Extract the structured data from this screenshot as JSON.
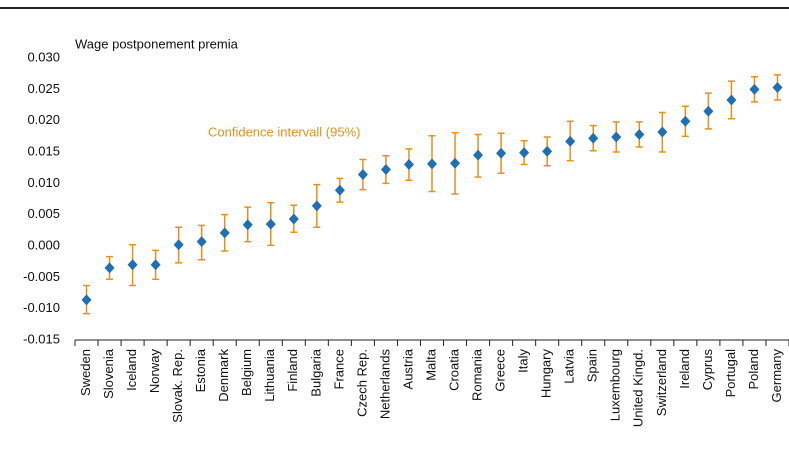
{
  "chart_data": {
    "type": "errorbar",
    "title": "Wage postponement premia",
    "annotation": "Confidence intervall (95%)",
    "categories": [
      "Sweden",
      "Slovenia",
      "Iceland",
      "Norway",
      "Slovak. Rep.",
      "Estonia",
      "Denmark",
      "Belgium",
      "Lithuania",
      "Finland",
      "Bulgaria",
      "France",
      "Czech Rep.",
      "Netherlands",
      "Austria",
      "Malta",
      "Croatia",
      "Romania",
      "Greece",
      "Italy",
      "Hungary",
      "Latvia",
      "Spain",
      "Luxembourg",
      "United Kingd.",
      "Switzerland",
      "Ireland",
      "Cyprus",
      "Portugal",
      "Poland",
      "Germany"
    ],
    "series": [
      {
        "color": "#1f6fb2",
        "error_color": "#e8901a",
        "values": [
          -0.0086,
          -0.0035,
          -0.003,
          -0.003,
          0.0002,
          0.0007,
          0.0021,
          0.0034,
          0.0035,
          0.0043,
          0.0064,
          0.0089,
          0.0114,
          0.0122,
          0.013,
          0.0131,
          0.0132,
          0.0145,
          0.0148,
          0.0149,
          0.0151,
          0.0167,
          0.0172,
          0.0174,
          0.0178,
          0.0182,
          0.0199,
          0.0215,
          0.0233,
          0.025,
          0.0253
        ],
        "ci_low": [
          -0.0108,
          -0.0053,
          -0.0063,
          -0.0053,
          -0.0027,
          -0.0022,
          -0.0008,
          0.0007,
          0.0001,
          0.0022,
          0.003,
          0.007,
          0.009,
          0.01,
          0.0105,
          0.0087,
          0.0083,
          0.011,
          0.0116,
          0.013,
          0.0128,
          0.0136,
          0.0152,
          0.015,
          0.0158,
          0.015,
          0.0175,
          0.0187,
          0.0203,
          0.023,
          0.0233
        ],
        "ci_high": [
          -0.0063,
          -0.0017,
          0.0002,
          -0.0007,
          0.003,
          0.0033,
          0.005,
          0.0062,
          0.0069,
          0.0065,
          0.0098,
          0.0108,
          0.0138,
          0.0144,
          0.0155,
          0.0176,
          0.0181,
          0.0178,
          0.018,
          0.0168,
          0.0174,
          0.0199,
          0.0192,
          0.0198,
          0.0198,
          0.0213,
          0.0223,
          0.0244,
          0.0263,
          0.027,
          0.0273
        ]
      }
    ],
    "ylim": [
      -0.015,
      0.03
    ],
    "yticks": [
      {
        "value": -0.015,
        "label": "-0.015"
      },
      {
        "value": -0.01,
        "label": "-0.010"
      },
      {
        "value": -0.005,
        "label": "-0.005"
      },
      {
        "value": 0,
        "label": "0.000"
      },
      {
        "value": 0.005,
        "label": "0.005"
      },
      {
        "value": 0.01,
        "label": "0.010"
      },
      {
        "value": 0.015,
        "label": "0.015"
      },
      {
        "value": 0.02,
        "label": "0.020"
      },
      {
        "value": 0.025,
        "label": "0.025"
      },
      {
        "value": 0.03,
        "label": "0.030"
      }
    ],
    "grid": false
  }
}
